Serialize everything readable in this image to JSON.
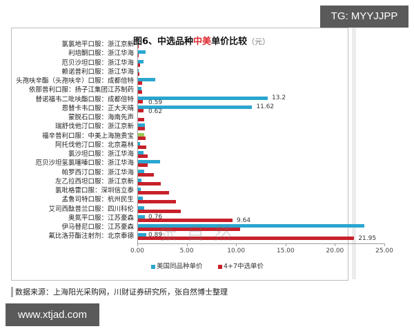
{
  "badges": {
    "top_right": "TG: MYYJJPP",
    "bottom_left": "www.xtjad.com"
  },
  "chart_data": {
    "type": "bar",
    "orientation": "horizontal",
    "title": "图6、中选品种中美单价比较（元）",
    "title_parts": {
      "prefix": "图6、中选品种",
      "highlight": "中美",
      "suffix": "单价比较",
      "unit": "（元）"
    },
    "xlabel": "",
    "ylabel": "",
    "xlim": [
      0,
      25
    ],
    "x_ticks": [
      "0.00",
      "5.00",
      "10.00",
      "15.00",
      "20.00",
      "25.00"
    ],
    "grid": false,
    "legend_position": "bottom",
    "categories": [
      "氯氯地平口服：浙江京新",
      "利培酮口服：浙江华海",
      "厄贝沙坦口服：浙江华海",
      "赖诺普利口服：浙江华海",
      "头孢呋辛酯（头孢呋辛）口服：成都倍特",
      "依那普利口服：扬子江集团江苏制药",
      "替诺福韦二吡呋酯口服：成都倍特",
      "恩替卡韦口服：正大天晴",
      "蒙脱石口服：海南先声",
      "瑞舒伐他汀口服：浙江京新",
      "福辛普利口服：中美上海施贵宝",
      "阿托伐他汀口服：北京嘉林",
      "氯沙坦口服：浙江华海",
      "厄贝沙坦氢氯噻嗪口服：浙江华海",
      "帕罗西汀口服：浙江华海",
      "左乙拉西坦口服：浙江京新",
      "氯吡格雷口服：深圳信立泰",
      "孟鲁司特口服：杭州民生",
      "艾司西酞普兰口服：四川科伦",
      "奥氮平口服：江苏豪森",
      "伊马替尼口服：江苏豪森",
      "氟比洛芬酯注射剂：北京泰德"
    ],
    "series": [
      {
        "name": "美国同品种单价",
        "color": "#2aa6cf",
        "values": [
          null,
          0.85,
          0.6,
          0.05,
          1.85,
          0.4,
          13.2,
          11.62,
          null,
          0.75,
          0.7,
          0.3,
          0.6,
          2.3,
          0.7,
          0.4,
          0.35,
          0.55,
          0.7,
          0.76,
          23.0,
          0.89
        ]
      },
      {
        "name": "4+7中选单价",
        "color": "#c8202a",
        "values": [
          0.13,
          0.16,
          0.26,
          0.19,
          0.46,
          0.49,
          0.59,
          0.62,
          0.69,
          0.75,
          0.81,
          0.94,
          1.04,
          1.08,
          1.67,
          2.4,
          3.18,
          3.9,
          4.37,
          9.64,
          10.4,
          21.95
        ]
      }
    ],
    "special_colors": {
      "福辛普利口服：中美上海施贵宝": {
        "blue_series_color": "#9bc85a"
      }
    },
    "annotations": [
      {
        "category": "替诺福韦二吡呋酯口服：成都倍特",
        "series": "美国同品种单价",
        "text": "13.2"
      },
      {
        "category": "替诺福韦二吡呋酯口服：成都倍特",
        "series": "4+7中选单价",
        "text": "0.59"
      },
      {
        "category": "恩替卡韦口服：正大天晴",
        "series": "美国同品种单价",
        "text": "11.62"
      },
      {
        "category": "恩替卡韦口服：正大天晴",
        "series": "4+7中选单价",
        "text": "0.62"
      },
      {
        "category": "奥氮平口服：江苏豪森",
        "series": "美国同品种单价",
        "text": "0.76"
      },
      {
        "category": "奥氮平口服：江苏豪森",
        "series": "4+7中选单价",
        "text": "9.64"
      },
      {
        "category": "氟比洛芬酯注射剂：北京泰德",
        "series": "美国同品种单价",
        "text": "0.89"
      },
      {
        "category": "氟比洛芬酯注射剂：北京泰德",
        "series": "4+7中选单价",
        "text": "21.95"
      }
    ]
  },
  "legend": {
    "blue": "美国同品种单价",
    "red": "4+7中选单价"
  },
  "source_note": "数据来源：上海阳光采购网，川财证券研究所，张自然博士整理",
  "watermark": "张自然"
}
